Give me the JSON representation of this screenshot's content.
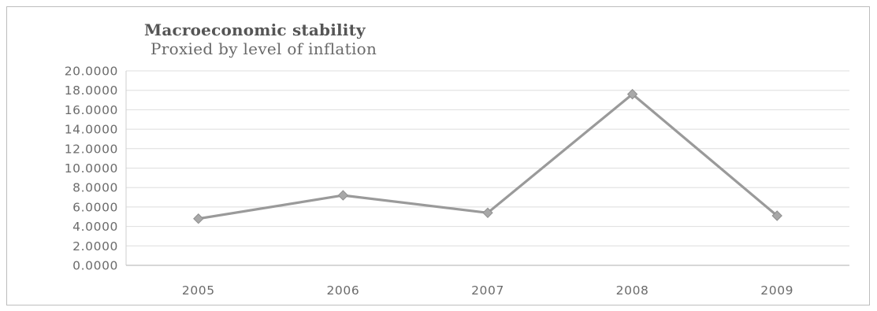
{
  "chart_data": {
    "type": "line",
    "title": "Macroeconomic stability",
    "subtitle": "Proxied by level of inflation",
    "categories": [
      "2005",
      "2006",
      "2007",
      "2008",
      "2009"
    ],
    "series": [
      {
        "values": [
          4.8,
          7.2,
          5.4,
          17.6,
          5.1
        ]
      }
    ],
    "ylim": [
      0,
      20
    ],
    "yticks": [
      0,
      2,
      4,
      6,
      8,
      10,
      12,
      14,
      16,
      18,
      20
    ],
    "ytick_labels": [
      "0.0000",
      "2.0000",
      "4.0000",
      "6.0000",
      "8.0000",
      "10.0000",
      "12.0000",
      "14.0000",
      "16.0000",
      "18.0000",
      "20.0000"
    ],
    "grid": true,
    "legend": "none",
    "line_color": "#9a9a9a",
    "marker_color": "#a8a8a8",
    "marker": "diamond"
  }
}
